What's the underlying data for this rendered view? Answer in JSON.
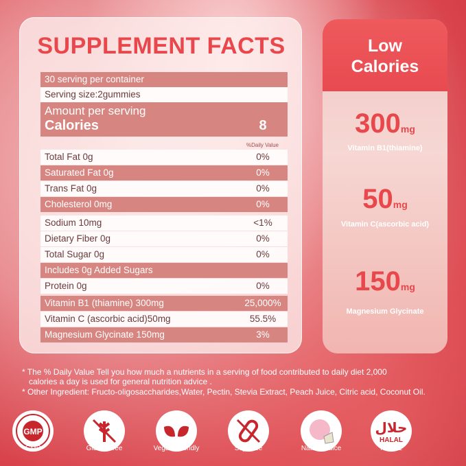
{
  "title": "SUPPLEMENT FACTS",
  "servings": "30 serving per container",
  "serving_size": "Serving size:2gummies",
  "amount_label": "Amount per serving",
  "calories_label": "Calories",
  "calories_value": "8",
  "daily_value_header": "%Daily Value",
  "rows": [
    {
      "name": "Total Fat 0g",
      "value": "0%"
    },
    {
      "name": "Saturated Fat 0g",
      "value": "0%"
    },
    {
      "name": "Trans Fat 0g",
      "value": "0%"
    },
    {
      "name": "Cholesterol 0mg",
      "value": "0%"
    },
    {
      "name": "Sodium 10mg",
      "value": "<1%"
    },
    {
      "name": "Dietary Fiber 0g",
      "value": "0%"
    },
    {
      "name": "Total Sugar 0g",
      "value": "0%"
    },
    {
      "name": "Includes 0g Added Sugars",
      "value": ""
    },
    {
      "name": "Protein 0g",
      "value": "0%"
    },
    {
      "name": "Vitamin B1 (thiamine) 300mg",
      "value": "25,000%"
    },
    {
      "name": "Vitamin C (ascorbic acid)50mg",
      "value": "55.5%"
    },
    {
      "name": "Magnesium Glycinate 150mg",
      "value": "3%"
    }
  ],
  "panel": {
    "heading1": "Low",
    "heading2": "Calories",
    "items": [
      {
        "amount": "300",
        "unit": "mg",
        "label": "Vitamin B1(thiamine)"
      },
      {
        "amount": "50",
        "unit": "mg",
        "label": "Vitamin C(ascorbic acid)"
      },
      {
        "amount": "150",
        "unit": "mg",
        "label": "Magnesium Glycinate"
      }
    ]
  },
  "notes": [
    "* The % Daily Value Tell you how much a nutrients in a serving of food contributed to daily diet 2,000",
    "calories a day is used for general nutrition advice .",
    "* Other Ingredient: Fructo-oligosaccharides,Water, Pectin, Stevia Extract, Peach Juice, Citric acid, Coconut Oil."
  ],
  "badges": [
    {
      "label": "GMP",
      "icon": "gmp-seal-icon"
    },
    {
      "label": "Gluten Free",
      "icon": "no-wheat-icon"
    },
    {
      "label": "Vegan Friendly",
      "icon": "leaf-icon"
    },
    {
      "label": "Soy Free",
      "icon": "no-soy-icon"
    },
    {
      "label": "Natural Juice",
      "icon": "peach-icon"
    },
    {
      "label": "HALAL",
      "icon": "halal-icon"
    }
  ],
  "gmp_text": "GMP",
  "halal_text": "HALAL",
  "colors": {
    "accent": "#e8474c",
    "row_dark": "#d78580"
  }
}
